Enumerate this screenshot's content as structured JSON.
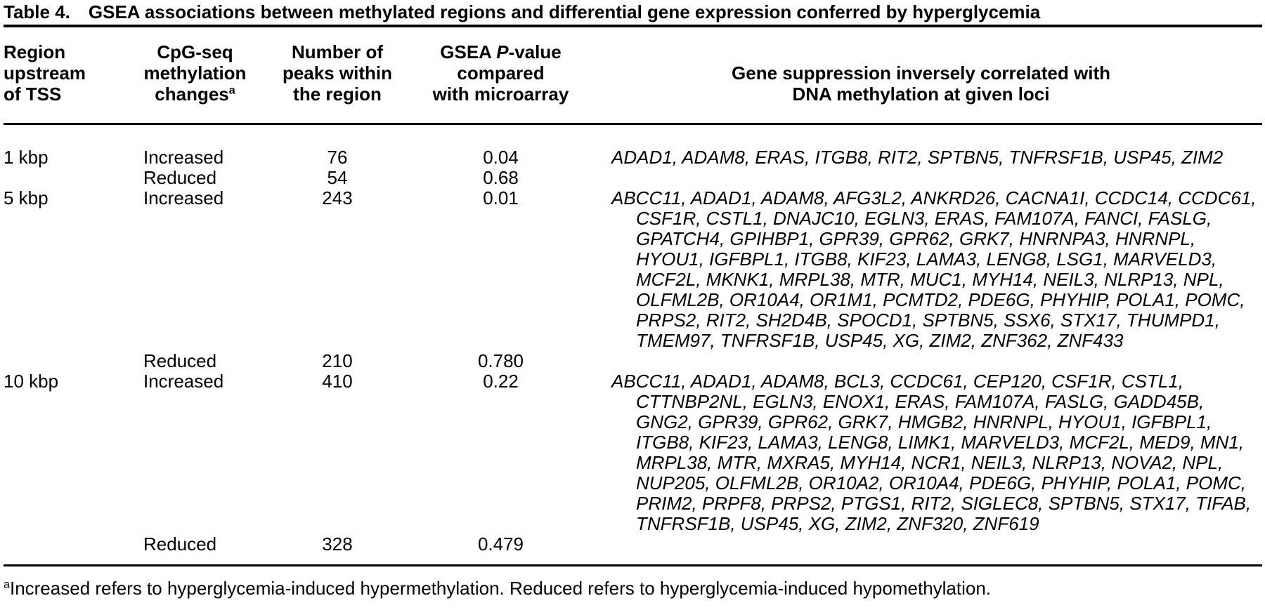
{
  "title": {
    "label": "Table 4.",
    "caption": "GSEA associations between methylated regions and differential gene expression conferred by hyperglycemia"
  },
  "header": {
    "col1": {
      "lines": [
        "Region",
        "upstream",
        "of TSS"
      ]
    },
    "col2": {
      "lines": [
        "CpG-seq",
        "methylation",
        "changes"
      ],
      "superscript": "a"
    },
    "col3": {
      "lines": [
        "Number of",
        "peaks within",
        "the region"
      ]
    },
    "col4": {
      "line1_pre": "GSEA ",
      "line1_italic": "P",
      "line1_post": "-value",
      "line2": "compared",
      "line3": "with microarray"
    },
    "col5": {
      "lines": [
        "Gene suppression inversely correlated with",
        "DNA methylation at given loci"
      ]
    }
  },
  "rows": [
    {
      "region": "1 kbp",
      "change": "Increased",
      "peaks": "76",
      "pvalue": "0.04",
      "genes": "ADAD1, ADAM8, ERAS, ITGB8, RIT2, SPTBN5, TNFRSF1B, USP45, ZIM2"
    },
    {
      "region": "",
      "change": "Reduced",
      "peaks": "54",
      "pvalue": "0.68",
      "genes": ""
    },
    {
      "region": "5 kbp",
      "change": "Increased",
      "peaks": "243",
      "pvalue": "0.01",
      "genes": "ABCC11, ADAD1, ADAM8, AFG3L2, ANKRD26, CACNA1I, CCDC14, CCDC61, CSF1R, CSTL1, DNAJC10, EGLN3, ERAS, FAM107A, FANCI, FASLG, GPATCH4, GPIHBP1, GPR39, GPR62, GRK7, HNRNPA3, HNRNPL, HYOU1, IGFBPL1, ITGB8, KIF23, LAMA3, LENG8, LSG1, MARVELD3, MCF2L, MKNK1, MRPL38, MTR, MUC1, MYH14, NEIL3, NLRP13, NPL, OLFML2B, OR10A4, OR1M1, PCMTD2, PDE6G, PHYHIP, POLA1, POMC, PRPS2, RIT2, SH2D4B, SPOCD1, SPTBN5, SSX6, STX17, THUMPD1, TMEM97, TNFRSF1B, USP45, XG, ZIM2, ZNF362, ZNF433"
    },
    {
      "region": "",
      "change": "Reduced",
      "peaks": "210",
      "pvalue": "0.780",
      "genes": ""
    },
    {
      "region": "10 kbp",
      "change": "Increased",
      "peaks": "410",
      "pvalue": "0.22",
      "genes": "ABCC11, ADAD1, ADAM8, BCL3, CCDC61, CEP120, CSF1R, CSTL1, CTTNBP2NL, EGLN3, ENOX1, ERAS, FAM107A, FASLG, GADD45B, GNG2, GPR39, GPR62, GRK7, HMGB2, HNRNPL, HYOU1, IGFBPL1, ITGB8, KIF23, LAMA3, LENG8, LIMK1, MARVELD3, MCF2L, MED9, MN1, MRPL38, MTR, MXRA5, MYH14, NCR1, NEIL3, NLRP13, NOVA2, NPL, NUP205, OLFML2B, OR10A2, OR10A4, PDE6G, PHYHIP, POLA1, POMC, PRIM2, PRPF8, PRPS2, PTGS1, RIT2, SIGLEC8, SPTBN5, STX17, TIFAB, TNFRSF1B, USP45, XG, ZIM2, ZNF320, ZNF619"
    },
    {
      "region": "",
      "change": "Reduced",
      "peaks": "328",
      "pvalue": "0.479",
      "genes": ""
    }
  ],
  "footnote": {
    "superscript": "a",
    "text": "Increased refers to hyperglycemia-induced hypermethylation. Reduced refers to hyperglycemia-induced hypomethylation."
  }
}
